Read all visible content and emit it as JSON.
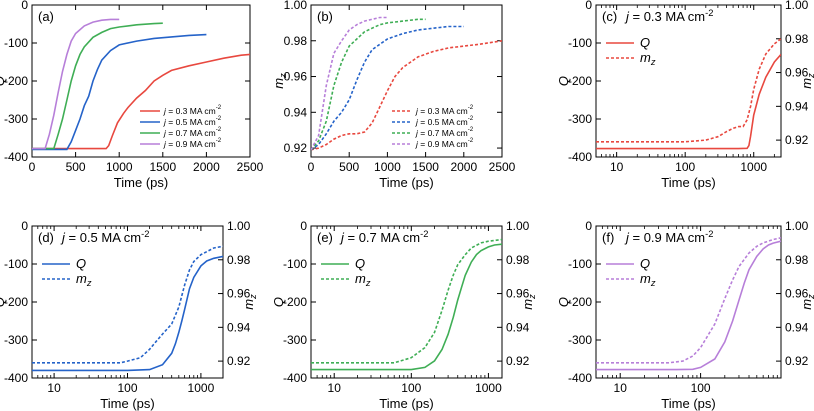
{
  "chart_data": [
    {
      "label": "(a)",
      "type": "line",
      "xscale": "linear",
      "xlim": [
        0,
        2500
      ],
      "xticks": [
        0,
        500,
        1000,
        1500,
        2000,
        2500
      ],
      "xtick_labels": [
        "0",
        "500",
        "1000",
        "1500",
        "2000",
        "2500"
      ],
      "xlabel": "Time (ps)",
      "ylim": [
        -400,
        0
      ],
      "yticks": [
        -400,
        -300,
        -200,
        -100,
        0
      ],
      "ytick_labels": [
        "-400",
        "-300",
        "-200",
        "-100",
        "0"
      ],
      "ylabel": "Q",
      "legend": {
        "position": "bottom-right",
        "style": "inner"
      },
      "series": [
        {
          "name": "j = 0.3 MA cm-2",
          "legend_parts": [
            "j",
            " = 0.3 MA cm",
            "-2"
          ],
          "color": "#e8483f",
          "dash": "solid",
          "x": [
            0,
            850,
            880,
            920,
            980,
            1050,
            1100,
            1200,
            1300,
            1400,
            1500,
            1600,
            1800,
            2000,
            2200,
            2400,
            2500
          ],
          "y": [
            -378,
            -378,
            -370,
            -345,
            -310,
            -285,
            -270,
            -245,
            -225,
            -200,
            -185,
            -172,
            -160,
            -150,
            -140,
            -132,
            -130
          ]
        },
        {
          "name": "j = 0.5 MA cm-2",
          "legend_parts": [
            "j",
            " = 0.5 MA cm",
            "-2"
          ],
          "color": "#2563c9",
          "dash": "solid",
          "x": [
            0,
            400,
            450,
            500,
            550,
            600,
            650,
            700,
            750,
            800,
            900,
            1000,
            1200,
            1400,
            1600,
            1800,
            2000
          ],
          "y": [
            -380,
            -380,
            -360,
            -330,
            -300,
            -265,
            -240,
            -200,
            -170,
            -145,
            -120,
            -105,
            -95,
            -88,
            -84,
            -80,
            -78
          ]
        },
        {
          "name": "j = 0.7 MA cm-2",
          "legend_parts": [
            "j",
            " = 0.7 MA cm",
            "-2"
          ],
          "color": "#3fae55",
          "dash": "solid",
          "x": [
            0,
            250,
            300,
            350,
            400,
            450,
            500,
            550,
            600,
            700,
            800,
            900,
            1000,
            1200,
            1400,
            1500
          ],
          "y": [
            -378,
            -378,
            -340,
            -300,
            -250,
            -200,
            -160,
            -130,
            -110,
            -85,
            -72,
            -62,
            -58,
            -52,
            -49,
            -48
          ]
        },
        {
          "name": "j = 0.9 MA cm-2",
          "legend_parts": [
            "j",
            " = 0.9 MA cm",
            "-2"
          ],
          "color": "#b77fd9",
          "dash": "solid",
          "x": [
            0,
            150,
            200,
            250,
            300,
            350,
            400,
            450,
            500,
            600,
            700,
            800,
            900,
            1000
          ],
          "y": [
            -378,
            -378,
            -340,
            -290,
            -230,
            -175,
            -130,
            -95,
            -75,
            -55,
            -45,
            -40,
            -38,
            -38
          ]
        }
      ]
    },
    {
      "label": "(b)",
      "type": "line",
      "xscale": "linear",
      "xlim": [
        0,
        2500
      ],
      "xticks": [
        0,
        500,
        1000,
        1500,
        2000,
        2500
      ],
      "xtick_labels": [
        "0",
        "500",
        "1000",
        "1500",
        "2000",
        "2500"
      ],
      "xlabel": "Time (ps)",
      "ylim": [
        0.915,
        1.0
      ],
      "yticks": [
        0.92,
        0.94,
        0.96,
        0.98,
        1.0
      ],
      "ytick_labels": [
        "0.92",
        "0.94",
        "0.96",
        "0.98",
        "1.00"
      ],
      "ylabel_parts": [
        "m",
        "z"
      ],
      "legend": {
        "position": "bottom-right",
        "style": "inner"
      },
      "series": [
        {
          "name": "j = 0.3 MA cm-2",
          "legend_parts": [
            "j",
            " = 0.3 MA cm",
            "-2"
          ],
          "color": "#e8483f",
          "dash": "dotted",
          "x": [
            0,
            100,
            200,
            300,
            400,
            500,
            600,
            700,
            800,
            900,
            1000,
            1100,
            1200,
            1400,
            1600,
            1800,
            2000,
            2200,
            2500
          ],
          "y": [
            0.919,
            0.92,
            0.922,
            0.925,
            0.927,
            0.928,
            0.928,
            0.929,
            0.934,
            0.943,
            0.952,
            0.96,
            0.965,
            0.971,
            0.974,
            0.976,
            0.977,
            0.978,
            0.98
          ]
        },
        {
          "name": "j = 0.5 MA cm-2",
          "legend_parts": [
            "j",
            " = 0.5 MA cm",
            "-2"
          ],
          "color": "#2563c9",
          "dash": "dotted",
          "x": [
            0,
            100,
            200,
            300,
            400,
            500,
            600,
            700,
            800,
            900,
            1000,
            1200,
            1400,
            1600,
            1800,
            2000
          ],
          "y": [
            0.919,
            0.922,
            0.928,
            0.935,
            0.94,
            0.947,
            0.958,
            0.968,
            0.975,
            0.978,
            0.981,
            0.984,
            0.986,
            0.987,
            0.988,
            0.988
          ]
        },
        {
          "name": "j = 0.7 MA cm-2",
          "legend_parts": [
            "j",
            " = 0.7 MA cm",
            "-2"
          ],
          "color": "#3fae55",
          "dash": "dotted",
          "x": [
            0,
            100,
            200,
            300,
            400,
            500,
            600,
            700,
            800,
            900,
            1000,
            1200,
            1400,
            1500
          ],
          "y": [
            0.919,
            0.924,
            0.935,
            0.955,
            0.968,
            0.977,
            0.981,
            0.985,
            0.987,
            0.989,
            0.99,
            0.991,
            0.992,
            0.992
          ]
        },
        {
          "name": "j = 0.9 MA cm-2",
          "legend_parts": [
            "j",
            " = 0.9 MA cm",
            "-2"
          ],
          "color": "#b77fd9",
          "dash": "dotted",
          "x": [
            0,
            100,
            200,
            300,
            400,
            500,
            600,
            700,
            800,
            900,
            1000
          ],
          "y": [
            0.919,
            0.927,
            0.955,
            0.973,
            0.98,
            0.986,
            0.989,
            0.991,
            0.992,
            0.993,
            0.993
          ]
        }
      ]
    },
    {
      "label": "(c)",
      "title_parts": [
        "j",
        " = 0.3 MA cm",
        "-2"
      ],
      "type": "line",
      "xscale": "log",
      "xlim": [
        5,
        2500
      ],
      "xticks": [
        10,
        100,
        1000
      ],
      "xtick_labels": [
        "10",
        "100",
        "1000"
      ],
      "xlabel": "Time (ps)",
      "ylim": [
        -400,
        0
      ],
      "yticks": [
        -400,
        -300,
        -200,
        -100,
        0
      ],
      "ytick_labels": [
        "-400",
        "-300",
        "-200",
        "-100",
        "0"
      ],
      "ylabel": "Q",
      "y2lim": [
        0.91,
        1.0
      ],
      "y2ticks": [
        0.92,
        0.94,
        0.96,
        0.98,
        1.0
      ],
      "y2tick_labels": [
        "0.92",
        "0.94",
        "0.96",
        "0.98",
        "1.00"
      ],
      "y2label_parts": [
        "m",
        "z"
      ],
      "legend": {
        "position": "top-left",
        "style": "simple"
      },
      "color": "#e8483f",
      "series": [
        {
          "name": "Q",
          "legend_parts": [
            "Q"
          ],
          "axis": "y",
          "dash": "solid",
          "x": [
            5,
            10,
            50,
            100,
            300,
            600,
            800,
            850,
            900,
            1000,
            1200,
            1500,
            2000,
            2500
          ],
          "y": [
            -378,
            -378,
            -378,
            -378,
            -378,
            -378,
            -377,
            -370,
            -345,
            -290,
            -235,
            -190,
            -150,
            -130
          ]
        },
        {
          "name": "m_z",
          "legend_parts": [
            "m",
            "z"
          ],
          "axis": "y2",
          "dash": "dotted",
          "x": [
            5,
            10,
            50,
            100,
            200,
            300,
            400,
            500,
            600,
            700,
            800,
            900,
            1000,
            1200,
            1500,
            2000,
            2500
          ],
          "y": [
            0.919,
            0.919,
            0.919,
            0.919,
            0.92,
            0.922,
            0.925,
            0.927,
            0.928,
            0.928,
            0.932,
            0.94,
            0.95,
            0.962,
            0.971,
            0.977,
            0.98
          ]
        }
      ]
    },
    {
      "label": "(d)",
      "title_parts": [
        "j",
        " = 0.5 MA cm",
        "-2"
      ],
      "type": "line",
      "xscale": "log",
      "xlim": [
        5,
        2000
      ],
      "xticks": [
        10,
        100,
        1000
      ],
      "xtick_labels": [
        "10",
        "100",
        "1000"
      ],
      "xlabel": "Time (ps)",
      "ylim": [
        -400,
        0
      ],
      "yticks": [
        -400,
        -300,
        -200,
        -100,
        0
      ],
      "ytick_labels": [
        "-400",
        "-300",
        "-200",
        "-100",
        "0"
      ],
      "ylabel": "Q",
      "y2lim": [
        0.91,
        1.0
      ],
      "y2ticks": [
        0.92,
        0.94,
        0.96,
        0.98,
        1.0
      ],
      "y2tick_labels": [
        "0.92",
        "0.94",
        "0.96",
        "0.98",
        "1.00"
      ],
      "y2label_parts": [
        "m",
        "z"
      ],
      "legend": {
        "position": "top-left",
        "style": "simple"
      },
      "color": "#2563c9",
      "series": [
        {
          "name": "Q",
          "legend_parts": [
            "Q"
          ],
          "axis": "y",
          "dash": "solid",
          "x": [
            5,
            10,
            50,
            100,
            200,
            300,
            400,
            450,
            500,
            550,
            600,
            700,
            800,
            1000,
            1200,
            1500,
            2000
          ],
          "y": [
            -380,
            -380,
            -380,
            -380,
            -378,
            -365,
            -335,
            -310,
            -280,
            -250,
            -220,
            -165,
            -135,
            -105,
            -92,
            -85,
            -80
          ]
        },
        {
          "name": "m_z",
          "legend_parts": [
            "m",
            "z"
          ],
          "axis": "y2",
          "dash": "dotted",
          "x": [
            5,
            10,
            50,
            80,
            100,
            150,
            200,
            250,
            300,
            400,
            500,
            600,
            700,
            800,
            1000,
            1500,
            2000
          ],
          "y": [
            0.919,
            0.919,
            0.919,
            0.919,
            0.92,
            0.922,
            0.927,
            0.932,
            0.936,
            0.942,
            0.952,
            0.965,
            0.974,
            0.979,
            0.983,
            0.987,
            0.988
          ]
        }
      ]
    },
    {
      "label": "(e)",
      "title_parts": [
        "j",
        " = 0.7 MA cm",
        "-2"
      ],
      "type": "line",
      "xscale": "log",
      "xlim": [
        5,
        1500
      ],
      "xticks": [
        10,
        100,
        1000
      ],
      "xtick_labels": [
        "10",
        "100",
        "1000"
      ],
      "xlabel": "Time (ps)",
      "ylim": [
        -400,
        0
      ],
      "yticks": [
        -400,
        -300,
        -200,
        -100,
        0
      ],
      "ytick_labels": [
        "-400",
        "-300",
        "-200",
        "-100",
        "0"
      ],
      "ylabel": "Q",
      "y2lim": [
        0.91,
        1.0
      ],
      "y2ticks": [
        0.92,
        0.94,
        0.96,
        0.98,
        1.0
      ],
      "y2tick_labels": [
        "0.92",
        "0.94",
        "0.96",
        "0.98",
        "1.00"
      ],
      "y2label_parts": [
        "m",
        "z"
      ],
      "legend": {
        "position": "top-left",
        "style": "simple"
      },
      "color": "#3fae55",
      "series": [
        {
          "name": "Q",
          "legend_parts": [
            "Q"
          ],
          "axis": "y",
          "dash": "solid",
          "x": [
            5,
            10,
            50,
            100,
            150,
            200,
            250,
            300,
            350,
            400,
            450,
            500,
            600,
            700,
            800,
            1000,
            1200,
            1500
          ],
          "y": [
            -378,
            -378,
            -378,
            -378,
            -372,
            -355,
            -325,
            -285,
            -240,
            -195,
            -160,
            -130,
            -95,
            -75,
            -65,
            -55,
            -50,
            -48
          ]
        },
        {
          "name": "m_z",
          "legend_parts": [
            "m",
            "z"
          ],
          "axis": "y2",
          "dash": "dotted",
          "x": [
            5,
            10,
            50,
            60,
            100,
            150,
            200,
            250,
            300,
            350,
            400,
            500,
            600,
            800,
            1000,
            1500
          ],
          "y": [
            0.919,
            0.919,
            0.919,
            0.919,
            0.922,
            0.928,
            0.937,
            0.95,
            0.962,
            0.971,
            0.977,
            0.983,
            0.987,
            0.99,
            0.991,
            0.992
          ]
        }
      ]
    },
    {
      "label": "(f)",
      "title_parts": [
        "j",
        " = 0.9 MA cm",
        "-2"
      ],
      "type": "line",
      "xscale": "log",
      "xlim": [
        5,
        1000
      ],
      "xticks": [
        10,
        100
      ],
      "xtick_labels": [
        "10",
        "100"
      ],
      "xlabel": "Time (ps)",
      "ylim": [
        -400,
        0
      ],
      "yticks": [
        -400,
        -300,
        -200,
        -100,
        0
      ],
      "ytick_labels": [
        "-400",
        "-300",
        "-200",
        "-100",
        "0"
      ],
      "ylabel": "Q",
      "y2lim": [
        0.91,
        1.0
      ],
      "y2ticks": [
        0.92,
        0.94,
        0.96,
        0.98,
        1.0
      ],
      "y2tick_labels": [
        "0.92",
        "0.94",
        "0.96",
        "0.98",
        "1.00"
      ],
      "y2label_parts": [
        "m",
        "z"
      ],
      "legend": {
        "position": "top-left",
        "style": "simple"
      },
      "color": "#b77fd9",
      "series": [
        {
          "name": "Q",
          "legend_parts": [
            "Q"
          ],
          "axis": "y",
          "dash": "solid",
          "x": [
            5,
            10,
            50,
            80,
            100,
            150,
            200,
            250,
            300,
            350,
            400,
            500,
            600,
            700,
            800,
            1000
          ],
          "y": [
            -378,
            -378,
            -378,
            -377,
            -372,
            -350,
            -305,
            -250,
            -195,
            -150,
            -115,
            -80,
            -60,
            -50,
            -45,
            -40
          ]
        },
        {
          "name": "m_z",
          "legend_parts": [
            "m",
            "z"
          ],
          "axis": "y2",
          "dash": "dotted",
          "x": [
            5,
            10,
            40,
            60,
            80,
            100,
            150,
            200,
            250,
            300,
            400,
            500,
            600,
            800,
            1000
          ],
          "y": [
            0.919,
            0.919,
            0.919,
            0.92,
            0.923,
            0.928,
            0.942,
            0.957,
            0.968,
            0.976,
            0.984,
            0.988,
            0.99,
            0.992,
            0.993
          ]
        }
      ]
    }
  ]
}
